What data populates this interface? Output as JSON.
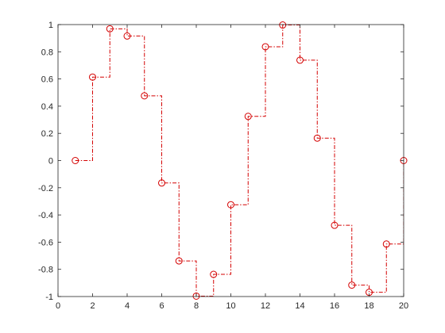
{
  "chart_data": {
    "type": "line",
    "style": "stairs",
    "title": "",
    "xlabel": "",
    "ylabel": "",
    "xlim": [
      0,
      20
    ],
    "ylim": [
      -1,
      1
    ],
    "xticks": [
      0,
      2,
      4,
      6,
      8,
      10,
      12,
      14,
      16,
      18,
      20
    ],
    "yticks": [
      -1,
      -0.8,
      -0.6,
      -0.4,
      -0.2,
      0,
      0.2,
      0.4,
      0.6,
      0.8,
      1
    ],
    "xtick_labels": [
      "0",
      "2",
      "4",
      "6",
      "8",
      "10",
      "12",
      "14",
      "16",
      "18",
      "20"
    ],
    "ytick_labels": [
      "-1",
      "-0.8",
      "-0.6",
      "-0.4",
      "-0.2",
      "0",
      "0.2",
      "0.4",
      "0.6",
      "0.8",
      "1"
    ],
    "grid": false,
    "box": true,
    "series": [
      {
        "color": "#d40000",
        "line_style": "dash-dot",
        "marker": "circle",
        "x": [
          1,
          2,
          3,
          4,
          5,
          6,
          7,
          8,
          9,
          10,
          11,
          12,
          13,
          14,
          15,
          16,
          17,
          18,
          19,
          20
        ],
        "y": [
          0,
          0.614,
          0.969,
          0.916,
          0.476,
          -0.165,
          -0.738,
          -0.997,
          -0.837,
          -0.325,
          0.325,
          0.837,
          0.997,
          0.738,
          0.165,
          -0.476,
          -0.916,
          -0.969,
          -0.614,
          0
        ]
      }
    ]
  }
}
